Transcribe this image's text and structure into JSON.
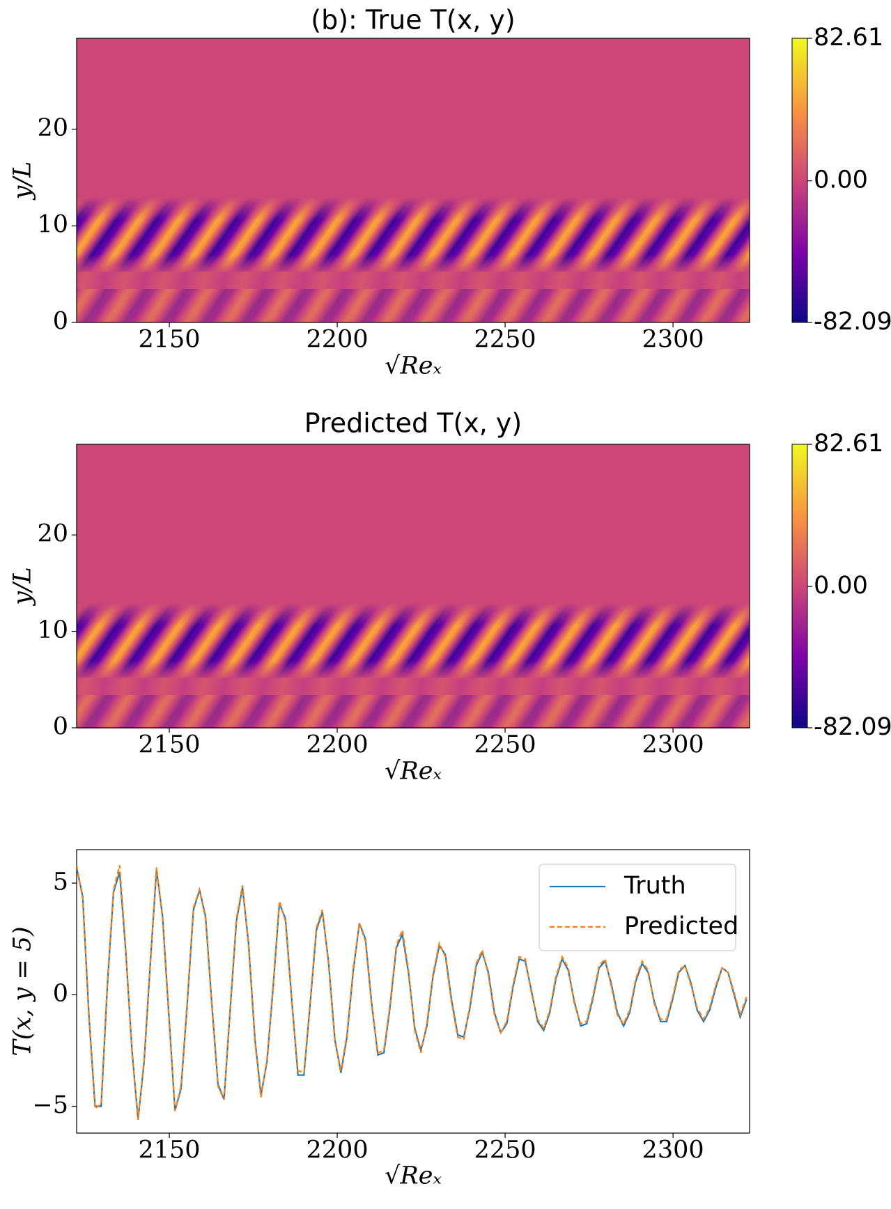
{
  "chart_data": [
    {
      "type": "heatmap",
      "title": "(b): True T(x, y)",
      "xlabel": "√Reₓ",
      "ylabel": "y/L",
      "xlim": [
        2122.4,
        2322.8
      ],
      "xticks": [
        2150,
        2200,
        2250,
        2300
      ],
      "ylim": [
        0,
        29.4
      ],
      "yticks": [
        0,
        10,
        20
      ],
      "colormap": "plasma",
      "clim": [
        -82.09,
        82.61
      ],
      "cticks": [
        -82.09,
        {
          "value": 0,
          "label": "0.00"
        },
        82.61
      ]
    },
    {
      "type": "heatmap",
      "title": "Predicted T(x, y)",
      "xlabel": "√Reₓ",
      "ylabel": "y/L",
      "xlim": [
        2122.4,
        2322.8
      ],
      "xticks": [
        2150,
        2200,
        2250,
        2300
      ],
      "ylim": [
        0,
        29.4
      ],
      "yticks": [
        0,
        10,
        20
      ],
      "colormap": "plasma",
      "clim": [
        -82.09,
        82.61
      ],
      "cticks": [
        -82.09,
        {
          "value": 0,
          "label": "0.00"
        },
        82.61
      ]
    },
    {
      "type": "line",
      "xlabel": "√Reₓ",
      "ylabel": "T(x, y = 5)",
      "xlim": [
        2122.4,
        2322.8
      ],
      "xticks": [
        2150,
        2200,
        2250,
        2300
      ],
      "ylim": [
        -6.2,
        6.5
      ],
      "yticks": [
        {
          "value": -5,
          "label": "−5"
        },
        0,
        5
      ],
      "legend": "upper right",
      "x": [
        2122.4,
        2124.2,
        2126.1,
        2127.9,
        2129.7,
        2131.6,
        2133.4,
        2135.2,
        2137.0,
        2138.9,
        2140.7,
        2142.5,
        2144.4,
        2146.2,
        2148.0,
        2149.9,
        2151.7,
        2153.5,
        2155.3,
        2157.2,
        2159.0,
        2160.8,
        2162.7,
        2164.5,
        2166.3,
        2168.2,
        2170.0,
        2171.8,
        2173.6,
        2175.5,
        2177.3,
        2179.1,
        2181.0,
        2182.8,
        2184.6,
        2186.5,
        2188.3,
        2190.1,
        2191.9,
        2193.8,
        2195.6,
        2197.4,
        2199.3,
        2201.1,
        2202.9,
        2204.8,
        2206.6,
        2208.4,
        2210.2,
        2212.1,
        2213.9,
        2215.7,
        2217.6,
        2219.4,
        2221.2,
        2223.1,
        2224.9,
        2226.7,
        2228.5,
        2230.4,
        2232.2,
        2234.0,
        2235.9,
        2237.7,
        2239.5,
        2241.4,
        2243.2,
        2245.0,
        2246.8,
        2248.7,
        2250.5,
        2252.3,
        2254.2,
        2256.0,
        2257.8,
        2259.7,
        2261.5,
        2263.3,
        2265.1,
        2267.0,
        2268.8,
        2270.6,
        2272.5,
        2274.3,
        2276.1,
        2278.0,
        2279.8,
        2281.6,
        2283.4,
        2285.3,
        2287.1,
        2288.9,
        2290.8,
        2292.6,
        2294.4,
        2296.3,
        2298.1,
        2299.9,
        2301.7,
        2303.6,
        2305.4,
        2307.2,
        2309.1,
        2310.9,
        2312.7,
        2314.6,
        2316.4,
        2318.2,
        2320.0,
        2321.9
      ],
      "series": [
        {
          "name": "Truth",
          "color": "#1f77b4",
          "dash": false,
          "values": [
            5.7,
            4.4,
            -1.0,
            -5.0,
            -5.0,
            0.5,
            4.6,
            5.5,
            2.0,
            -2.5,
            -5.6,
            -3.0,
            1.5,
            5.6,
            3.5,
            -1.0,
            -5.2,
            -4.2,
            -0.5,
            3.8,
            4.7,
            3.5,
            -0.5,
            -4.0,
            -4.7,
            -0.5,
            3.3,
            4.8,
            2.3,
            -2.0,
            -4.5,
            -3.0,
            0.5,
            4.1,
            3.4,
            -0.3,
            -3.6,
            -3.6,
            -0.5,
            2.9,
            3.7,
            1.5,
            -2.0,
            -3.5,
            -1.9,
            1.1,
            3.2,
            2.5,
            -0.3,
            -2.7,
            -2.6,
            -0.6,
            2.1,
            2.7,
            1.0,
            -1.5,
            -2.5,
            -1.4,
            0.8,
            2.2,
            1.8,
            -0.2,
            -1.8,
            -1.9,
            -0.6,
            1.3,
            1.9,
            1.0,
            -0.8,
            -1.7,
            -1.3,
            0.3,
            1.6,
            1.5,
            0.2,
            -1.2,
            -1.6,
            -0.8,
            0.7,
            1.6,
            1.1,
            -0.3,
            -1.4,
            -1.3,
            -0.2,
            1.2,
            1.5,
            0.5,
            -0.8,
            -1.4,
            -0.8,
            0.6,
            1.4,
            1.0,
            -0.3,
            -1.2,
            -1.2,
            -0.2,
            1.0,
            1.3,
            0.5,
            -0.7,
            -1.2,
            -0.7,
            0.3,
            1.2,
            1.0,
            0.0,
            -1.0,
            -0.2
          ]
        },
        {
          "name": "Predicted",
          "color": "#ff7f0e",
          "dash": true,
          "values": [
            5.8,
            4.3,
            -1.1,
            -5.1,
            -4.9,
            0.6,
            4.7,
            5.8,
            2.1,
            -2.6,
            -5.6,
            -2.9,
            1.6,
            5.7,
            3.4,
            -1.1,
            -5.2,
            -4.1,
            -0.4,
            3.9,
            4.7,
            3.4,
            -0.6,
            -4.1,
            -4.7,
            -0.4,
            3.4,
            4.9,
            2.2,
            -2.1,
            -4.6,
            -2.9,
            0.6,
            4.2,
            3.3,
            -0.4,
            -3.4,
            -3.5,
            -0.4,
            3.0,
            3.8,
            1.4,
            -2.1,
            -3.4,
            -1.8,
            1.2,
            3.2,
            2.4,
            -0.4,
            -2.6,
            -2.5,
            -0.5,
            2.2,
            2.9,
            1.1,
            -1.6,
            -2.6,
            -1.3,
            0.9,
            2.3,
            1.7,
            -0.3,
            -1.9,
            -2.0,
            -0.5,
            1.4,
            2.0,
            0.9,
            -0.9,
            -1.7,
            -1.2,
            0.4,
            1.7,
            1.6,
            0.1,
            -1.1,
            -1.5,
            -0.7,
            0.8,
            1.7,
            1.2,
            -0.4,
            -1.3,
            -1.2,
            -0.1,
            1.3,
            1.6,
            0.4,
            -0.9,
            -1.3,
            -0.7,
            0.7,
            1.5,
            1.1,
            -0.4,
            -1.1,
            -1.1,
            -0.1,
            1.1,
            1.3,
            0.4,
            -0.6,
            -1.1,
            -0.6,
            0.4,
            1.2,
            1.0,
            0.1,
            -0.9,
            -0.1
          ]
        }
      ]
    }
  ]
}
